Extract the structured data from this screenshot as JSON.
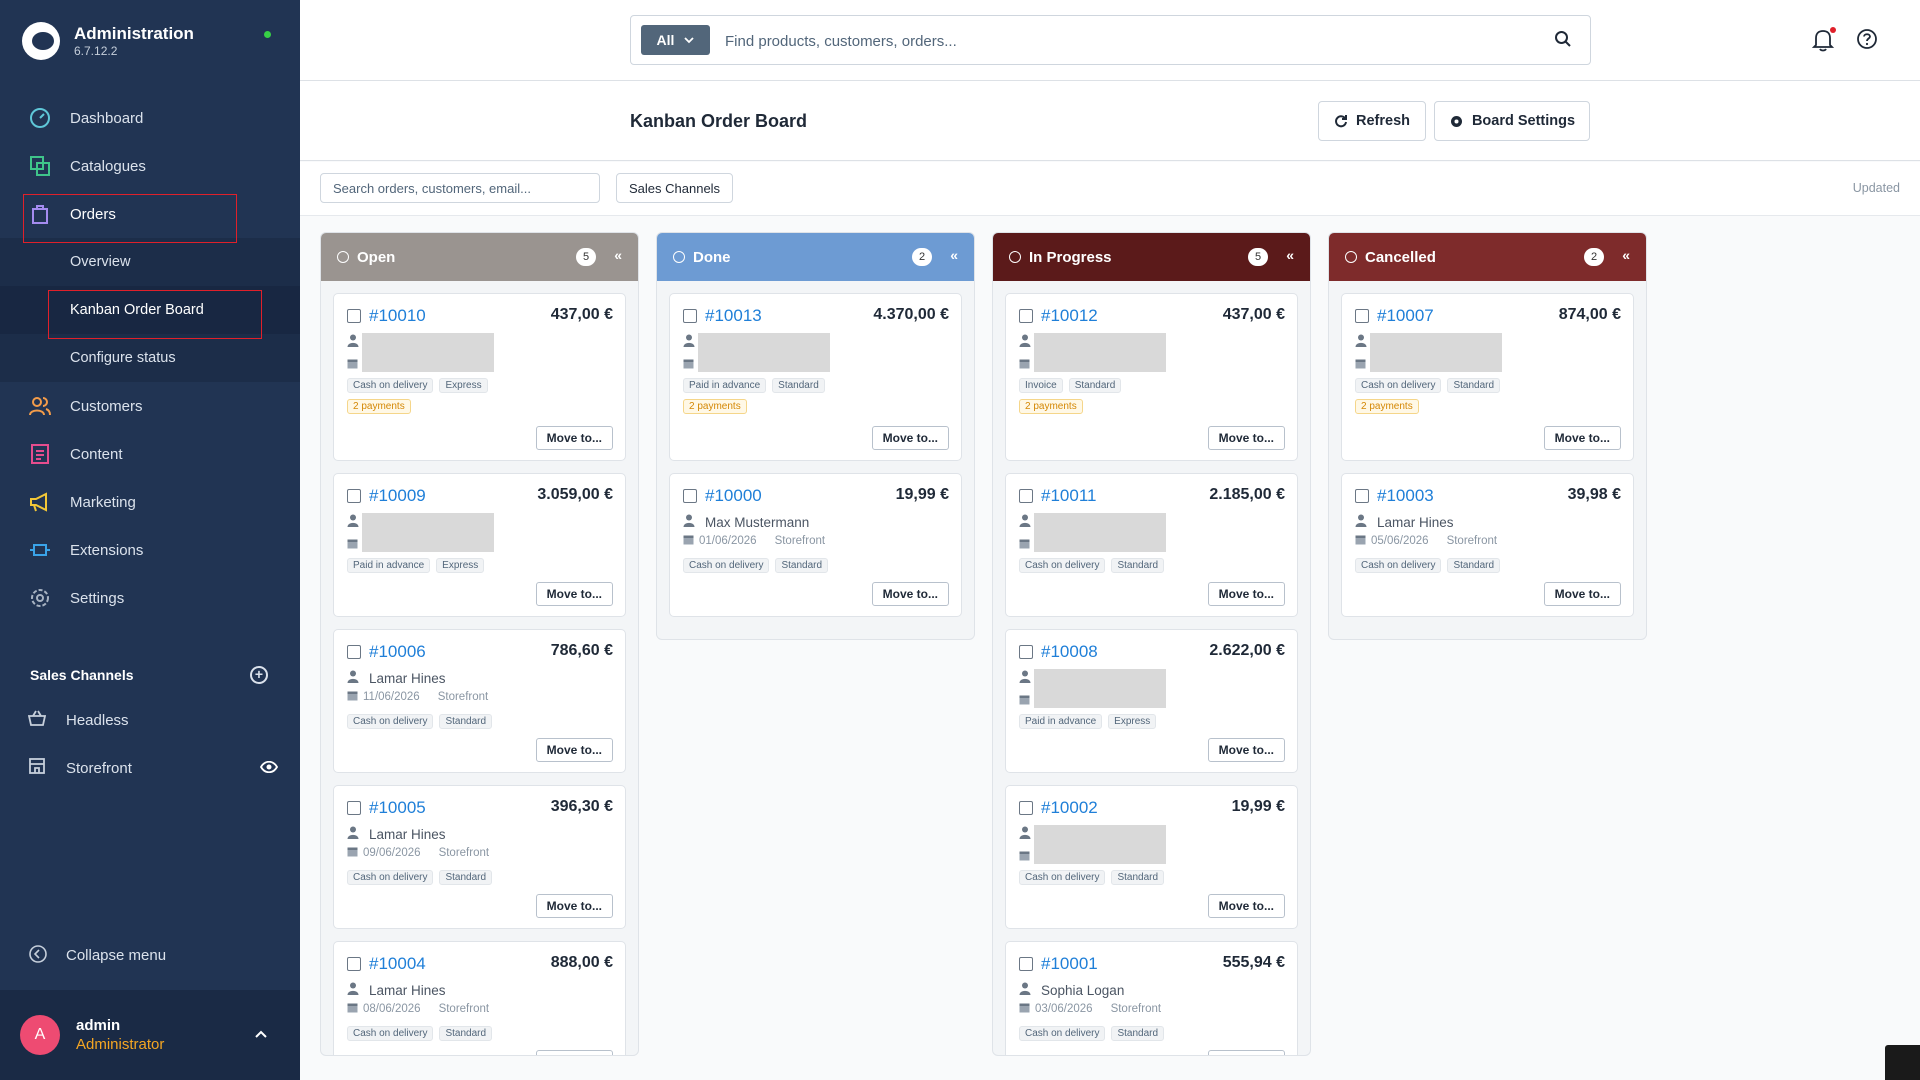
{
  "app": {
    "title": "Administration",
    "version": "6.7.12.2"
  },
  "nav": {
    "dashboard": "Dashboard",
    "catalogues": "Catalogues",
    "orders": "Orders",
    "overview": "Overview",
    "kanban": "Kanban Order Board",
    "configure_status": "Configure status",
    "customers": "Customers",
    "content": "Content",
    "marketing": "Marketing",
    "extensions": "Extensions",
    "settings": "Settings"
  },
  "sales_channels": {
    "title": "Sales Channels",
    "items": [
      "Headless",
      "Storefront"
    ]
  },
  "collapse_menu": "Collapse menu",
  "user": {
    "initial": "A",
    "name": "admin",
    "role": "Administrator"
  },
  "search": {
    "scope": "All",
    "placeholder": "Find products, customers, orders..."
  },
  "page": {
    "title": "Kanban Order Board",
    "refresh": "Refresh",
    "board_settings": "Board Settings",
    "filter_placeholder": "Search orders, customers, email...",
    "sales_channels_button": "Sales Channels",
    "updated": "Updated"
  },
  "move_label": "Move to...",
  "columns": [
    {
      "title": "Open",
      "count": "5",
      "color": "#9a9490",
      "cards": [
        {
          "number": "#10010",
          "amount": "437,00 €",
          "redacted": true,
          "payment": "Cash on delivery",
          "shipping": "Express",
          "extra": "2 payments"
        },
        {
          "number": "#10009",
          "amount": "3.059,00 €",
          "redacted": true,
          "payment": "Paid in advance",
          "shipping": "Express"
        },
        {
          "number": "#10006",
          "amount": "786,60 €",
          "customer": "Lamar Hines",
          "date": "11/06/2026",
          "channel": "Storefront",
          "payment": "Cash on delivery",
          "shipping": "Standard"
        },
        {
          "number": "#10005",
          "amount": "396,30 €",
          "customer": "Lamar Hines",
          "date": "09/06/2026",
          "channel": "Storefront",
          "payment": "Cash on delivery",
          "shipping": "Standard"
        },
        {
          "number": "#10004",
          "amount": "888,00 €",
          "customer": "Lamar Hines",
          "date": "08/06/2026",
          "channel": "Storefront",
          "payment": "Cash on delivery",
          "shipping": "Standard"
        }
      ]
    },
    {
      "title": "Done",
      "count": "2",
      "color": "#6d9bd3",
      "cards": [
        {
          "number": "#10013",
          "amount": "4.370,00 €",
          "redacted": true,
          "payment": "Paid in advance",
          "shipping": "Standard",
          "extra": "2 payments"
        },
        {
          "number": "#10000",
          "amount": "19,99 €",
          "customer": "Max Mustermann",
          "date": "01/06/2026",
          "channel": "Storefront",
          "payment": "Cash on delivery",
          "shipping": "Standard"
        }
      ]
    },
    {
      "title": "In Progress",
      "count": "5",
      "color": "#5b1a1a",
      "cards": [
        {
          "number": "#10012",
          "amount": "437,00 €",
          "redacted": true,
          "payment": "Invoice",
          "shipping": "Standard",
          "extra": "2 payments"
        },
        {
          "number": "#10011",
          "amount": "2.185,00 €",
          "redacted": true,
          "payment": "Cash on delivery",
          "shipping": "Standard"
        },
        {
          "number": "#10008",
          "amount": "2.622,00 €",
          "redacted": true,
          "payment": "Paid in advance",
          "shipping": "Express"
        },
        {
          "number": "#10002",
          "amount": "19,99 €",
          "redacted": true,
          "payment": "Cash on delivery",
          "shipping": "Standard"
        },
        {
          "number": "#10001",
          "amount": "555,94 €",
          "customer": "Sophia Logan",
          "date": "03/06/2026",
          "channel": "Storefront",
          "payment": "Cash on delivery",
          "shipping": "Standard"
        }
      ]
    },
    {
      "title": "Cancelled",
      "count": "2",
      "color": "#7e2b2b",
      "cards": [
        {
          "number": "#10007",
          "amount": "874,00 €",
          "redacted": true,
          "payment": "Cash on delivery",
          "shipping": "Standard",
          "extra": "2 payments"
        },
        {
          "number": "#10003",
          "amount": "39,98 €",
          "customer": "Lamar Hines",
          "date": "05/06/2026",
          "channel": "Storefront",
          "payment": "Cash on delivery",
          "shipping": "Standard"
        }
      ]
    }
  ]
}
